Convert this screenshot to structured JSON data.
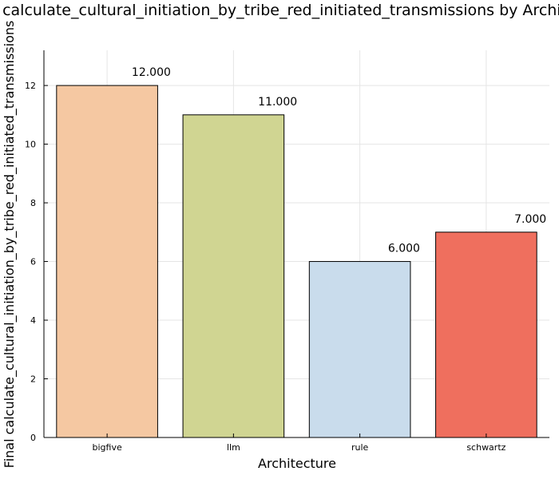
{
  "chart_data": {
    "type": "bar",
    "title": "Final calculate_cultural_initiation_by_tribe_red_initiated_transmissions by Architecture",
    "xlabel": "Architecture",
    "ylabel": "Final calculate_cultural_initiation_by_tribe_red_initiated_transmissions",
    "categories": [
      "bigfive",
      "llm",
      "rule",
      "schwartz"
    ],
    "values": [
      12,
      11,
      6,
      7
    ],
    "data_labels": [
      "12.000",
      "11.000",
      "6.000",
      "7.000"
    ],
    "colors": [
      "#f5c8a2",
      "#d0d592",
      "#c9dcec",
      "#ef6f5e"
    ],
    "ylim": [
      0,
      13.2
    ],
    "yticks": [
      0,
      2,
      4,
      6,
      8,
      10,
      12
    ],
    "grid": true,
    "legend": "none"
  }
}
